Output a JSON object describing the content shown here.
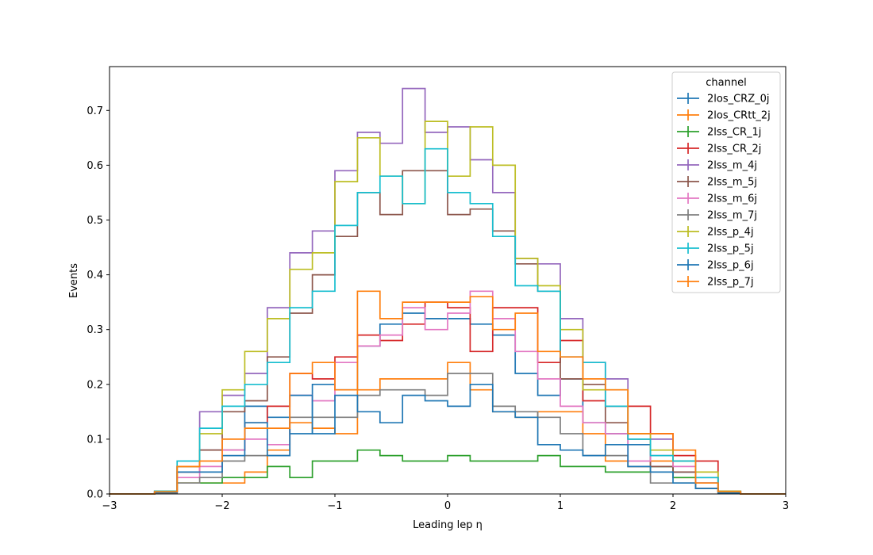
{
  "chart_data": {
    "type": "step-histogram",
    "xlabel": "Leading lep η",
    "ylabel": "Events",
    "xlim": [
      -3,
      3
    ],
    "ylim": [
      0,
      0.78
    ],
    "x_ticks": [
      -3,
      -2,
      -1,
      0,
      1,
      2,
      3
    ],
    "x_tick_labels": [
      "−3",
      "−2",
      "−1",
      "0",
      "1",
      "2",
      "3"
    ],
    "y_ticks": [
      0.0,
      0.1,
      0.2,
      0.3,
      0.4,
      0.5,
      0.6,
      0.7
    ],
    "y_tick_labels": [
      "0.0",
      "0.1",
      "0.2",
      "0.3",
      "0.4",
      "0.5",
      "0.6",
      "0.7"
    ],
    "bin_edges": [
      -3.0,
      -2.8,
      -2.6,
      -2.4,
      -2.2,
      -2.0,
      -1.8,
      -1.6,
      -1.4,
      -1.2,
      -1.0,
      -0.8,
      -0.6,
      -0.4,
      -0.2,
      0.0,
      0.2,
      0.4,
      0.6,
      0.8,
      1.0,
      1.2,
      1.4,
      1.6,
      1.8,
      2.0,
      2.2,
      2.4,
      2.6,
      2.8,
      3.0
    ],
    "legend": {
      "title": "channel",
      "placement": "top-right"
    },
    "series": [
      {
        "name": "2los_CRZ_0j",
        "color": "#1f77b4",
        "values": [
          0,
          0,
          0.003,
          0.05,
          0.08,
          0.08,
          0.16,
          0.14,
          0.11,
          0.2,
          0.19,
          0.27,
          0.31,
          0.33,
          0.32,
          0.32,
          0.31,
          0.29,
          0.22,
          0.18,
          0.21,
          0.13,
          0.11,
          0.09,
          0.05,
          0.04,
          0.03,
          0.005,
          0,
          0
        ]
      },
      {
        "name": "2los_CRtt_2j",
        "color": "#ff7f0e",
        "values": [
          0,
          0,
          0.004,
          0.02,
          0.02,
          0.02,
          0.04,
          0.08,
          0.13,
          0.12,
          0.11,
          0.19,
          0.21,
          0.21,
          0.21,
          0.24,
          0.19,
          0.15,
          0.14,
          0.15,
          0.15,
          0.11,
          0.06,
          0.05,
          0.06,
          0.03,
          0.01,
          0.003,
          0,
          0
        ]
      },
      {
        "name": "2lss_CR_1j",
        "color": "#2ca02c",
        "values": [
          0,
          0,
          0.002,
          0.02,
          0.02,
          0.03,
          0.03,
          0.05,
          0.03,
          0.06,
          0.06,
          0.08,
          0.07,
          0.06,
          0.06,
          0.07,
          0.06,
          0.06,
          0.06,
          0.07,
          0.05,
          0.05,
          0.04,
          0.04,
          0.05,
          0.03,
          0.02,
          0.003,
          0,
          0
        ]
      },
      {
        "name": "2lss_CR_2j",
        "color": "#d62728",
        "values": [
          0,
          0,
          0.004,
          0.04,
          0.08,
          0.08,
          0.13,
          0.16,
          0.22,
          0.21,
          0.25,
          0.29,
          0.28,
          0.31,
          0.35,
          0.34,
          0.26,
          0.34,
          0.34,
          0.24,
          0.28,
          0.17,
          0.16,
          0.16,
          0.11,
          0.07,
          0.06,
          0.005,
          0,
          0
        ]
      },
      {
        "name": "2lss_m_4j",
        "color": "#9467bd",
        "values": [
          0,
          0,
          0.005,
          0.05,
          0.15,
          0.18,
          0.22,
          0.34,
          0.44,
          0.48,
          0.59,
          0.66,
          0.64,
          0.74,
          0.66,
          0.67,
          0.61,
          0.55,
          0.43,
          0.42,
          0.32,
          0.24,
          0.21,
          0.11,
          0.1,
          0.06,
          0.02,
          0.005,
          0,
          0
        ]
      },
      {
        "name": "2lss_m_5j",
        "color": "#8c564b",
        "values": [
          0,
          0,
          0.005,
          0.05,
          0.08,
          0.15,
          0.17,
          0.25,
          0.33,
          0.4,
          0.47,
          0.55,
          0.51,
          0.59,
          0.59,
          0.51,
          0.52,
          0.48,
          0.42,
          0.37,
          0.21,
          0.2,
          0.13,
          0.1,
          0.05,
          0.04,
          0.01,
          0.004,
          0,
          0
        ]
      },
      {
        "name": "2lss_m_6j",
        "color": "#e377c2",
        "values": [
          0,
          0,
          0.003,
          0.03,
          0.05,
          0.08,
          0.1,
          0.09,
          0.18,
          0.17,
          0.24,
          0.27,
          0.29,
          0.34,
          0.3,
          0.33,
          0.37,
          0.32,
          0.26,
          0.21,
          0.16,
          0.13,
          0.11,
          0.06,
          0.07,
          0.05,
          0.02,
          0.004,
          0,
          0
        ]
      },
      {
        "name": "2lss_m_7j",
        "color": "#7f7f7f",
        "values": [
          0,
          0,
          0.002,
          0.02,
          0.03,
          0.06,
          0.07,
          0.07,
          0.14,
          0.14,
          0.14,
          0.18,
          0.19,
          0.19,
          0.18,
          0.22,
          0.22,
          0.16,
          0.15,
          0.14,
          0.11,
          0.07,
          0.07,
          0.05,
          0.02,
          0.02,
          0.01,
          0.002,
          0,
          0
        ]
      },
      {
        "name": "2lss_p_4j",
        "color": "#bcbd22",
        "values": [
          0,
          0,
          0.005,
          0.05,
          0.11,
          0.19,
          0.26,
          0.32,
          0.41,
          0.44,
          0.57,
          0.65,
          0.58,
          0.53,
          0.68,
          0.58,
          0.67,
          0.6,
          0.43,
          0.38,
          0.3,
          0.19,
          0.19,
          0.11,
          0.08,
          0.06,
          0.04,
          0.005,
          0,
          0
        ]
      },
      {
        "name": "2lss_p_5j",
        "color": "#17becf",
        "values": [
          0,
          0,
          0.005,
          0.06,
          0.12,
          0.16,
          0.2,
          0.24,
          0.34,
          0.37,
          0.49,
          0.55,
          0.58,
          0.53,
          0.63,
          0.55,
          0.53,
          0.47,
          0.38,
          0.37,
          0.25,
          0.24,
          0.16,
          0.1,
          0.07,
          0.06,
          0.03,
          0.004,
          0,
          0
        ]
      },
      {
        "name": "2lss_p_6j",
        "color": "#1f77b4",
        "values": [
          0,
          0,
          0.003,
          0.04,
          0.04,
          0.07,
          0.13,
          0.07,
          0.18,
          0.11,
          0.18,
          0.15,
          0.13,
          0.18,
          0.17,
          0.16,
          0.2,
          0.15,
          0.14,
          0.09,
          0.08,
          0.07,
          0.09,
          0.05,
          0.04,
          0.02,
          0.01,
          0.002,
          0,
          0
        ]
      },
      {
        "name": "2lss_p_7j",
        "color": "#ff7f0e",
        "values": [
          0,
          0,
          0.004,
          0.05,
          0.06,
          0.1,
          0.12,
          0.12,
          0.22,
          0.24,
          0.19,
          0.37,
          0.32,
          0.35,
          0.35,
          0.35,
          0.36,
          0.3,
          0.33,
          0.26,
          0.25,
          0.21,
          0.19,
          0.11,
          0.11,
          0.08,
          0.02,
          0.004,
          0,
          0
        ]
      }
    ]
  }
}
